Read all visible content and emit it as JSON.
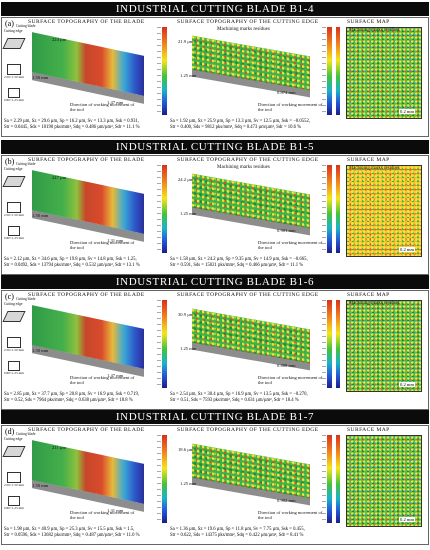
{
  "panel_titles": {
    "blade": "SURFACE TOPOGRAPHY OF THE BLADE",
    "edge": "SURFACE TOPOGRAPHY OF THE CUTTING EDGE",
    "map": "SURFACE MAP"
  },
  "common": {
    "direction_label": "Direction of working movement of the tool",
    "cutting_edge": "Cutting edge",
    "cutting_blade": "Cutting blade",
    "residues": "Machining marks residues",
    "scale": "0.2 mm",
    "sample_a": "2.50×1.50 mm",
    "sample_b": "0.80×1.25 mm"
  },
  "sections": [
    {
      "title": "INDUSTRIAL CUTTING BLADE B1-4",
      "label": "(a)",
      "blade_h": "224 µm",
      "blade_y": "1.50 mm",
      "blade_x": "1.47 mm",
      "edge_h": "21.9 µm",
      "edge_y": "1.25 mm",
      "edge_x": "0.874 mm",
      "stats1": [
        "Sa = 2.29 µm, Sz = 29.6 µm, Sp = 16.2 µm, Sv = 13.3 µm, Ssk = 0.931,",
        "Str = 0.0445, Sds = 10190 pks/mm², Sdq = 0.486 µm/µm², Sdr = 11.1 %"
      ],
      "stats2": [
        "Sa = 1.92 µm, Sz = 25.9 µm, Sp = 13.3 µm, Sv = 12.5 µm, Ssk = −0.0552,",
        "Str = 0.400, Sds = 9812 pks/mm², Sdq = 0.473 µm/µm², Sdr = 10.6 %"
      ]
    },
    {
      "title": "INDUSTRIAL CUTTING BLADE B1-5",
      "label": "(b)",
      "blade_h": "247 µm",
      "blade_y": "1.50 mm",
      "blade_x": "1.31 mm",
      "edge_h": "24.2 µm",
      "edge_y": "1.25 mm",
      "edge_x": "0.901 mm",
      "stats1": [
        "Sa = 2.12 µm, Sz = 34.6 µm, Sp = 19.8 µm, Sv = 14.8 µm, Ssk = 1.25,",
        "Str = 0.0492, Sds = 13794 pks/mm², Sdq = 0.532 µm/µm², Sdr = 13.1 %"
      ],
      "stats2": [
        "Sa = 1.58 µm, Sz = 24.2 µm, Sp = 9.35 µm, Sv = 14.9 µm, Ssk = −0.665,",
        "Str = 0.591, Sds = 15021 pks/mm², Sdq = 0.466 µm/µm², Sdr = 11.1 %"
      ]
    },
    {
      "title": "INDUSTRIAL CUTTING BLADE B1-6",
      "label": "(c)",
      "blade_h": "",
      "blade_y": "1.50 mm",
      "blade_x": "1.47 mm",
      "edge_h": "30.9 µm",
      "edge_y": "1.25 mm",
      "edge_x": "0.888 mm",
      "stats1": [
        "Sa = 2.85 µm, Sz = 37.7 µm, Sp = 20.8 µm, Sv = 16.9 µm, Ssk = 0.719,",
        "Str = 0.52, Sds = 7964 pks/mm², Sdq = 0.638 µm/µm², Sdr = 18.8 %"
      ],
      "stats2": [
        "Sa = 2.54 µm, Sz = 30.4 µm, Sp = 16.9 µm, Sv = 13.5 µm, Ssk = −0.270,",
        "Str = 0.51, Sds = 7593 pks/mm², Sdq = 0.631 µm/µm², Sdr = 18.4 %"
      ]
    },
    {
      "title": "INDUSTRIAL CUTTING BLADE B1-7",
      "label": "(d)",
      "blade_h": "211 µm",
      "blade_y": "1.50 mm",
      "blade_x": "1.31 mm",
      "edge_h": "18.6 µm",
      "edge_y": "1.25 mm",
      "edge_x": "0.902 mm",
      "stats1": [
        "Sa = 1.98 µm, Sz = 40.9 µm, Sp = 25.3 µm, Sv = 15.5 µm, Ssk = 1.5,",
        "Str = 0.0596, Sds = 13682 pks/mm², Sdq = 0.487 µm/µm², Sdr = 11.0 %"
      ],
      "stats2": [
        "Sa = 1.36 µm, Sz = 19.6 µm, Sp = 11.8 µm, Sv = 7.75 µm, Ssk = 0.455,",
        "Str = 0.622, Sds = 14375 pks/mm², Sdq = 0.422 µm/µm², Sdr = 8.41 %"
      ]
    }
  ]
}
